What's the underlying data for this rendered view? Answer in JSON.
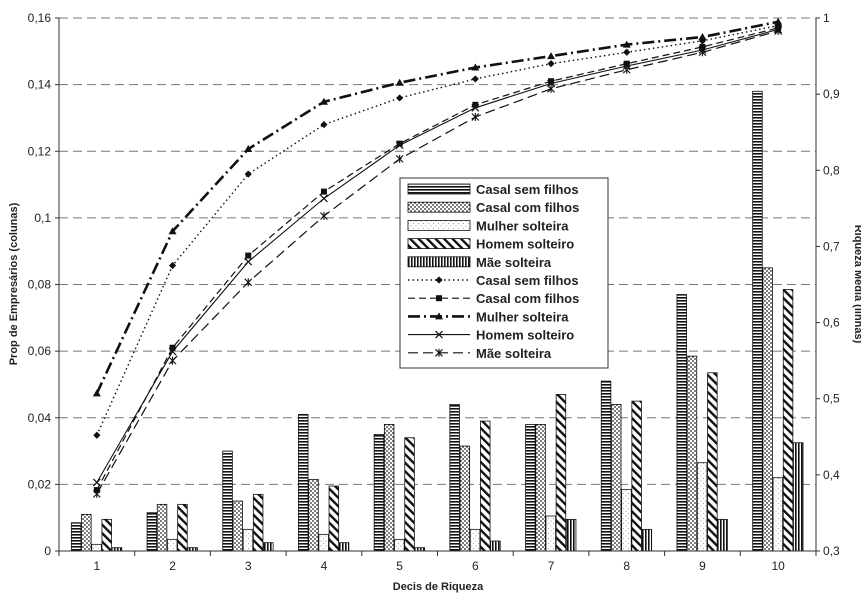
{
  "chart_data": {
    "type": "bar",
    "title": "",
    "xlabel": "Decis de Riqueza",
    "ylabel": "Prop de Empresários (colunas)",
    "y2label": "Riqueza Média (linhas)",
    "categories": [
      "1",
      "2",
      "3",
      "4",
      "5",
      "6",
      "7",
      "8",
      "9",
      "10"
    ],
    "ylim": [
      0,
      0.16
    ],
    "y2lim": [
      0.3,
      1
    ],
    "yticks": [
      "0",
      "0,02",
      "0,04",
      "0,06",
      "0,08",
      "0,1",
      "0,12",
      "0,14",
      "0,16"
    ],
    "y2ticks": [
      "0,3",
      "0,4",
      "0,5",
      "0,6",
      "0,7",
      "0,8",
      "0,9",
      "1"
    ],
    "grid": "horizontal-dashed",
    "legend_position": "center-right",
    "bar_series": [
      {
        "name": "Casal sem filhos",
        "pattern": "hlines",
        "values": [
          0.0085,
          0.0115,
          0.03,
          0.041,
          0.035,
          0.044,
          0.038,
          0.051,
          0.077,
          0.138
        ]
      },
      {
        "name": "Casal com filhos",
        "pattern": "dots",
        "values": [
          0.011,
          0.014,
          0.015,
          0.0215,
          0.038,
          0.0315,
          0.038,
          0.044,
          0.0585,
          0.085
        ]
      },
      {
        "name": "Mulher solteira",
        "pattern": "fine-dots",
        "values": [
          0.002,
          0.0035,
          0.0065,
          0.005,
          0.0035,
          0.0065,
          0.0105,
          0.0185,
          0.0265,
          0.022
        ]
      },
      {
        "name": "Homem solteiro",
        "pattern": "diagonal",
        "values": [
          0.0095,
          0.014,
          0.017,
          0.0195,
          0.034,
          0.039,
          0.047,
          0.045,
          0.0535,
          0.0785
        ]
      },
      {
        "name": "Mãe solteira",
        "pattern": "vlines",
        "values": [
          0.001,
          0.001,
          0.0025,
          0.0025,
          0.001,
          0.003,
          0.0095,
          0.0065,
          0.0095,
          0.0325
        ]
      }
    ],
    "line_series": [
      {
        "name": "Casal sem filhos",
        "dash": "dot",
        "marker": "diamond",
        "values": [
          0.452,
          0.675,
          0.795,
          0.86,
          0.895,
          0.92,
          0.94,
          0.955,
          0.97,
          0.99
        ]
      },
      {
        "name": "Casal com filhos",
        "dash": "dash",
        "marker": "square",
        "values": [
          0.38,
          0.567,
          0.688,
          0.772,
          0.835,
          0.886,
          0.917,
          0.94,
          0.962,
          0.987
        ]
      },
      {
        "name": "Mulher solteira",
        "dash": "dashdot",
        "marker": "triangle",
        "values": [
          0.507,
          0.72,
          0.828,
          0.89,
          0.915,
          0.935,
          0.95,
          0.965,
          0.975,
          0.995
        ]
      },
      {
        "name": "Homem solteiro",
        "dash": "solid",
        "marker": "x",
        "values": [
          0.39,
          0.562,
          0.68,
          0.763,
          0.833,
          0.882,
          0.914,
          0.937,
          0.958,
          0.985
        ]
      },
      {
        "name": "Mãe solteira",
        "dash": "longdash",
        "marker": "star",
        "values": [
          0.375,
          0.55,
          0.653,
          0.74,
          0.815,
          0.87,
          0.907,
          0.932,
          0.955,
          0.983
        ]
      }
    ]
  }
}
